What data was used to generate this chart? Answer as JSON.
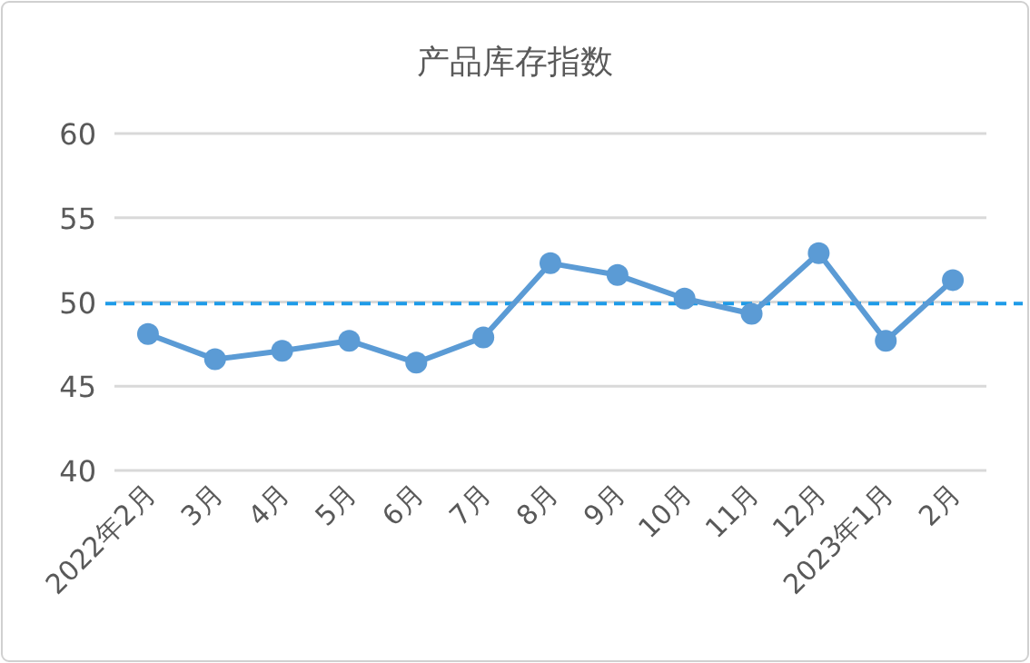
{
  "chart_data": {
    "type": "line",
    "title": "产品库存指数",
    "categories": [
      "2022年2月",
      "3月",
      "4月",
      "5月",
      "6月",
      "7月",
      "8月",
      "9月",
      "10月",
      "11月",
      "12月",
      "2023年1月",
      "2月"
    ],
    "series": [
      {
        "color": "#5b9bd5",
        "values": [
          48.1,
          46.6,
          47.1,
          47.7,
          46.4,
          47.9,
          52.3,
          51.6,
          50.2,
          49.3,
          52.9,
          47.7,
          51.3
        ]
      }
    ],
    "ylim": [
      40,
      60
    ],
    "yticks": [
      40,
      45,
      50,
      55,
      60
    ],
    "grid": "y",
    "marker": "circle",
    "line_style": "solid",
    "ref_lines": [
      {
        "axis": "y",
        "value": 49.9,
        "color": "#1e9be8",
        "line_style": "dashed"
      }
    ]
  }
}
